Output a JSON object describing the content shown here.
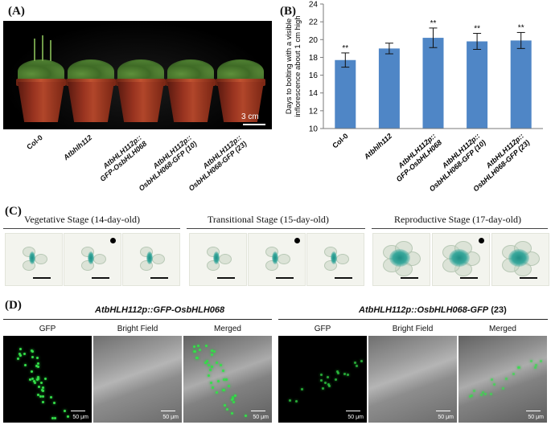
{
  "panels": {
    "a": "(A)",
    "b": "(B)",
    "c": "(C)",
    "d": "(D)"
  },
  "panel_a": {
    "scale_label": "3 cm",
    "genotypes": [
      {
        "line1": "Col-0",
        "line2": "",
        "italic": false
      },
      {
        "line1": "Atbhlh112",
        "line2": "",
        "italic": true
      },
      {
        "line1": "AtbHLH112p::",
        "line2": "GFP-OsbHLH068",
        "italic": true
      },
      {
        "line1": "AtbHLH112p::",
        "line2": "OsbHLH068-GFP (10)",
        "italic": true
      },
      {
        "line1": "AtbHLH112p::",
        "line2": "OsbHLH068-GFP (23)",
        "italic": true
      }
    ]
  },
  "chart_data": {
    "type": "bar",
    "ylabel": "Days to bolting with a visible inflorescence about 1 cm high",
    "ylabel_lines": [
      "Days to bolting with a visible",
      "inflorescence about 1 cm high"
    ],
    "ylim": [
      10,
      24
    ],
    "yticks": [
      10,
      12,
      14,
      16,
      18,
      20,
      22,
      24
    ],
    "categories": [
      {
        "line1": "Col-0",
        "line2": "",
        "italic": false
      },
      {
        "line1": "Atbhlh112",
        "line2": "",
        "italic": true
      },
      {
        "line1": "AtbHLH112p::",
        "line2": "GFP-OsbHLH068",
        "italic": true
      },
      {
        "line1": "AtbHLH112p::",
        "line2": "OsbHLH068-GFP (10)",
        "italic": true
      },
      {
        "line1": "AtbHLH112p::",
        "line2": "OsbHLH068-GFP (23)",
        "italic": true
      }
    ],
    "values": [
      17.7,
      19.0,
      20.2,
      19.8,
      19.9
    ],
    "errors": [
      0.8,
      0.6,
      1.1,
      0.9,
      0.9
    ],
    "significance": [
      "**",
      "",
      "**",
      "**",
      "**"
    ],
    "bar_color": "#4f86c6"
  },
  "panel_c": {
    "stages": [
      {
        "title": "Vegetative Stage (14-day-old)"
      },
      {
        "title": "Transitional Stage (15-day-old)"
      },
      {
        "title": "Reproductive Stage (17-day-old)"
      }
    ]
  },
  "panel_d": {
    "groups": [
      {
        "title_italic": "AtbHLH112p::GFP-OsbHLH068",
        "title_suffix": ""
      },
      {
        "title_italic": "AtbHLH112p::OsbHLH068-GFP",
        "title_suffix": " (23)"
      }
    ],
    "channels": [
      "GFP",
      "Bright Field",
      "Merged"
    ],
    "scale_label": "50 μm"
  }
}
